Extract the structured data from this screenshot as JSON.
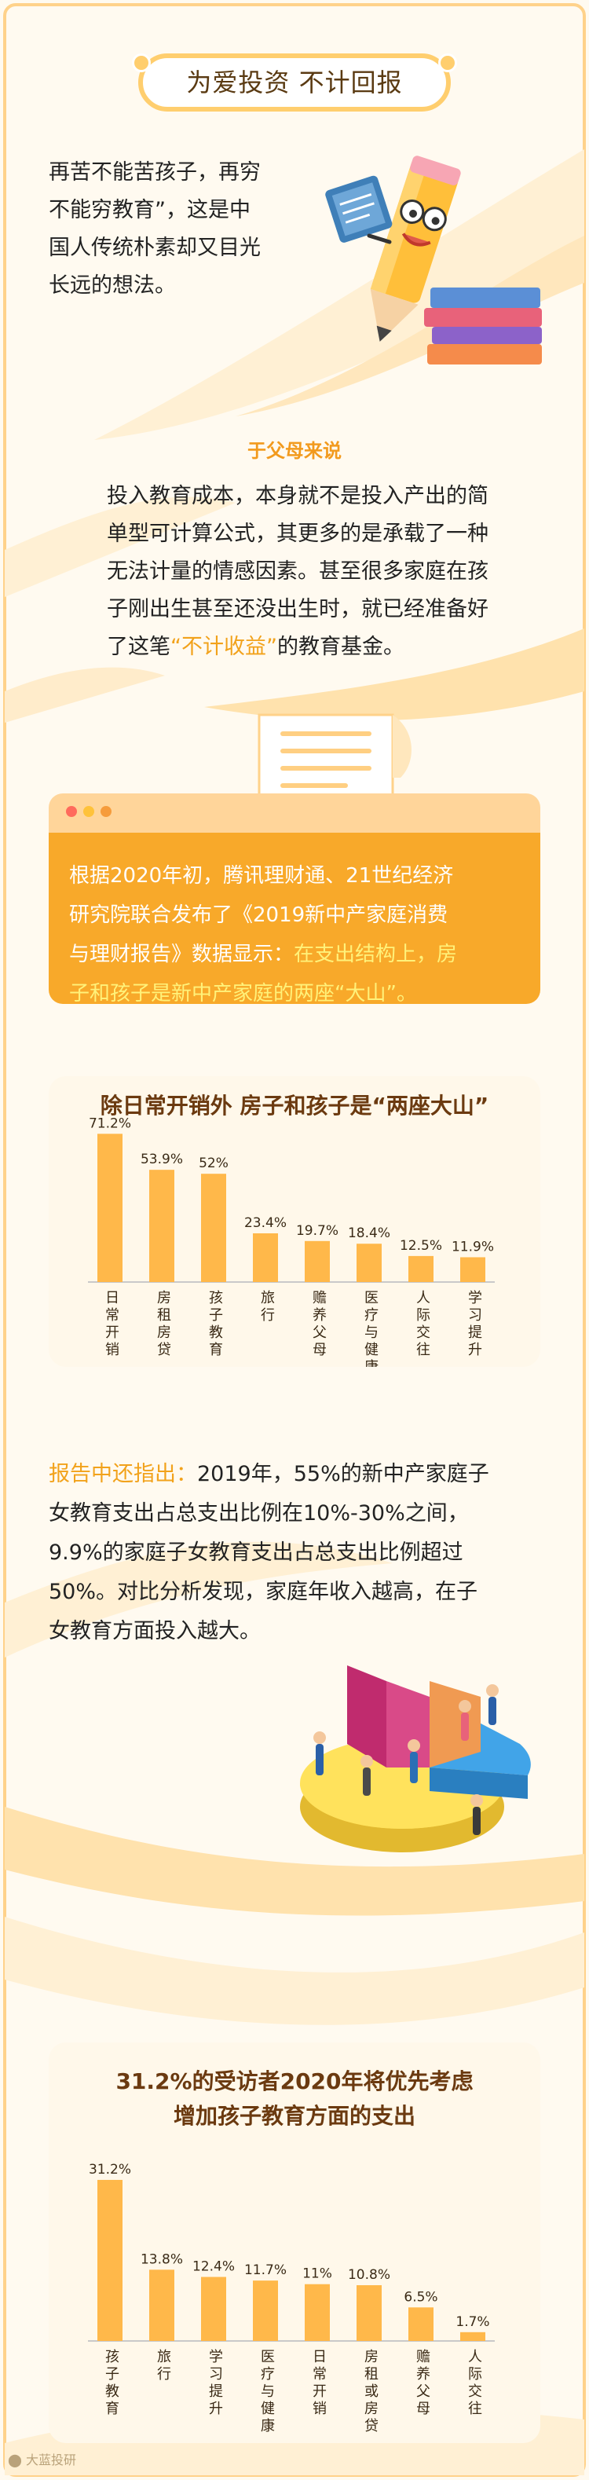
{
  "header": {
    "title": "为爱投资 不计回报"
  },
  "intro": {
    "lines": [
      "再苦不能苦孩子，再穷",
      "不能穷教育”，这是中",
      "国人传统朴素却又目光",
      "长远的想法。"
    ]
  },
  "parents": {
    "heading": "于父母来说",
    "lines": [
      "投入教育成本，本身就不是投入产出的简",
      "单型可计算公式，其更多的是承载了一种",
      "无法计量的情感因素。甚至很多家庭在孩",
      "子刚出生甚至还没出生时，就已经准备好"
    ],
    "last_pre": "了这笔",
    "last_highlight": "“不计收益”",
    "last_post": "的教育基金。"
  },
  "card": {
    "line1": "根据2020年初，腾讯理财通、21世纪经济",
    "line2": "研究院联合发布了《2019新中产家庭消费",
    "line3_pre": "与理财报告》数据显示：",
    "line3_hl": "在支出结构上，房",
    "line4": "子和孩子是新中产家庭的两座“大山”。"
  },
  "report": {
    "label": "报告中还指出：",
    "line1_rest": "2019年，55%的新中产家庭子",
    "line2": "女教育支出占总支出比例在10%-30%之间，",
    "line3": "9.9%的家庭子女教育支出占总支出比例超过",
    "line4": "50%。对比分析发现，家庭年收入越高，在子",
    "line5": "女教育方面投入越大。"
  },
  "colors": {
    "accent": "#f8a92a",
    "bar": "#ffb84a",
    "heading": "#f29a1d"
  },
  "chart_data": [
    {
      "type": "bar",
      "title": "除日常开销外 房子和孩子是“两座大山”",
      "categories": [
        "日常开销",
        "房租房贷",
        "孩子教育",
        "旅行",
        "赡养父母",
        "医疗与健康",
        "人际交往",
        "学习提升"
      ],
      "values": [
        71.2,
        53.9,
        52,
        23.4,
        19.7,
        18.4,
        12.5,
        11.9
      ],
      "labels": [
        "71.2%",
        "53.9%",
        "52%",
        "23.4%",
        "19.7%",
        "18.4%",
        "12.5%",
        "11.9%"
      ],
      "ylim": [
        0,
        80
      ],
      "xlabel": "",
      "ylabel": "",
      "grid": false
    },
    {
      "type": "bar",
      "title": "31.2%的受访者2020年将优先考虑",
      "subtitle": "增加孩子教育方面的支出",
      "categories": [
        "孩子教育",
        "旅行",
        "学习提升",
        "医疗与健康",
        "日常开销",
        "房租或房贷",
        "赡养父母",
        "人际交往"
      ],
      "values": [
        31.2,
        13.8,
        12.4,
        11.7,
        11,
        10.8,
        6.5,
        1.7
      ],
      "labels": [
        "31.2%",
        "13.8%",
        "12.4%",
        "11.7%",
        "11%",
        "10.8%",
        "6.5%",
        "1.7%"
      ],
      "ylim": [
        0,
        35
      ],
      "xlabel": "",
      "ylabel": "",
      "grid": false
    }
  ],
  "watermark": {
    "text": "大蓝投研"
  }
}
